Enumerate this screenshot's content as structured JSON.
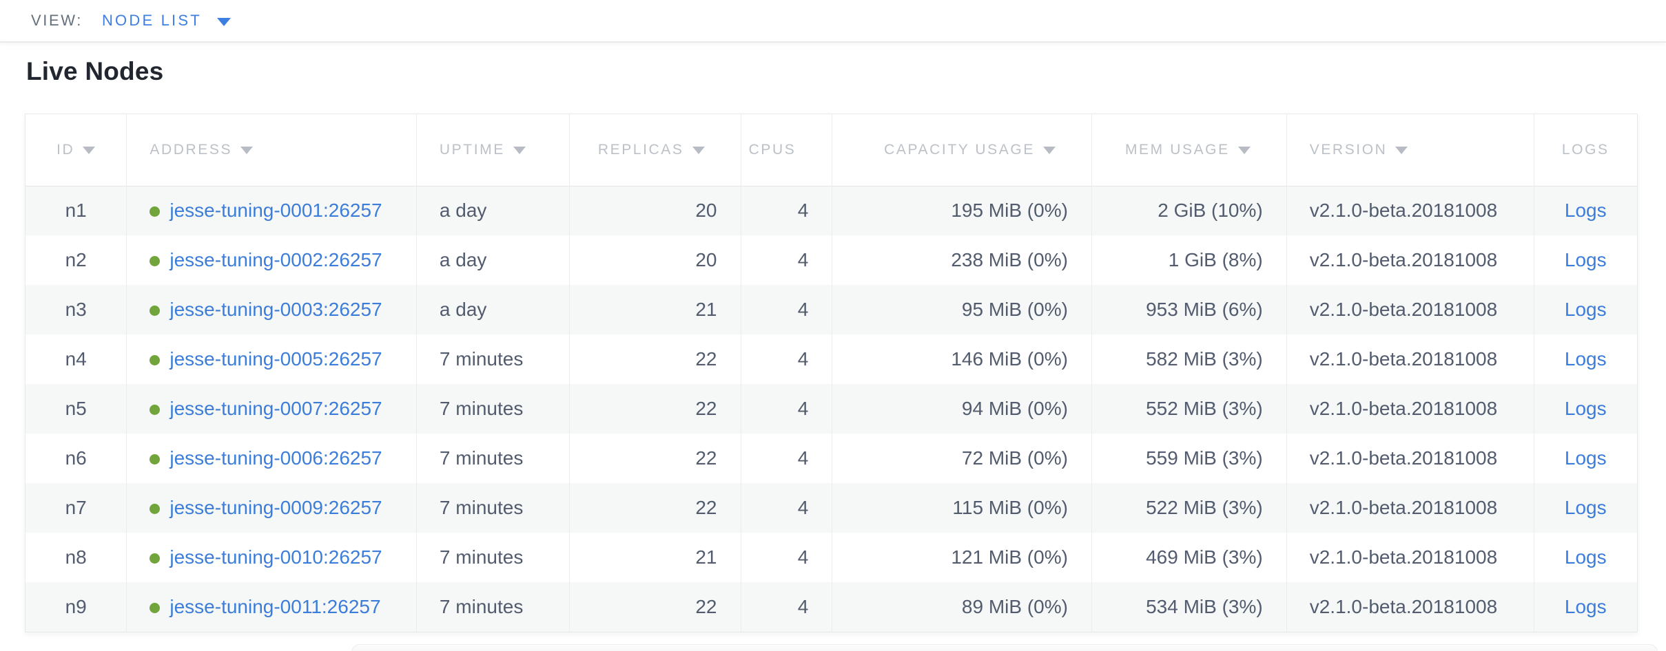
{
  "view_bar": {
    "label": "VIEW:",
    "selected": "NODE LIST"
  },
  "page": {
    "title": "Live Nodes"
  },
  "table": {
    "columns": [
      {
        "key": "id",
        "label": "ID",
        "sortable": true,
        "align": "center"
      },
      {
        "key": "address",
        "label": "ADDRESS",
        "sortable": true,
        "align": "left"
      },
      {
        "key": "uptime",
        "label": "UPTIME",
        "sortable": true,
        "align": "left"
      },
      {
        "key": "replicas",
        "label": "REPLICAS",
        "sortable": true,
        "align": "right"
      },
      {
        "key": "cpus",
        "label": "CPUS",
        "sortable": false,
        "align": "right"
      },
      {
        "key": "capacity",
        "label": "CAPACITY USAGE",
        "sortable": true,
        "align": "right"
      },
      {
        "key": "mem",
        "label": "MEM USAGE",
        "sortable": true,
        "align": "right"
      },
      {
        "key": "version",
        "label": "VERSION",
        "sortable": true,
        "align": "left"
      },
      {
        "key": "logs",
        "label": "LOGS",
        "sortable": false,
        "align": "center"
      }
    ],
    "rows": [
      {
        "id": "n1",
        "address": "jesse-tuning-0001:26257",
        "status": "healthy",
        "uptime": "a day",
        "replicas": "20",
        "cpus": "4",
        "capacity": "195 MiB (0%)",
        "mem": "2 GiB (10%)",
        "version": "v2.1.0-beta.20181008",
        "logs": "Logs"
      },
      {
        "id": "n2",
        "address": "jesse-tuning-0002:26257",
        "status": "healthy",
        "uptime": "a day",
        "replicas": "20",
        "cpus": "4",
        "capacity": "238 MiB (0%)",
        "mem": "1 GiB (8%)",
        "version": "v2.1.0-beta.20181008",
        "logs": "Logs"
      },
      {
        "id": "n3",
        "address": "jesse-tuning-0003:26257",
        "status": "healthy",
        "uptime": "a day",
        "replicas": "21",
        "cpus": "4",
        "capacity": "95 MiB (0%)",
        "mem": "953 MiB (6%)",
        "version": "v2.1.0-beta.20181008",
        "logs": "Logs"
      },
      {
        "id": "n4",
        "address": "jesse-tuning-0005:26257",
        "status": "healthy",
        "uptime": "7 minutes",
        "replicas": "22",
        "cpus": "4",
        "capacity": "146 MiB (0%)",
        "mem": "582 MiB (3%)",
        "version": "v2.1.0-beta.20181008",
        "logs": "Logs"
      },
      {
        "id": "n5",
        "address": "jesse-tuning-0007:26257",
        "status": "healthy",
        "uptime": "7 minutes",
        "replicas": "22",
        "cpus": "4",
        "capacity": "94 MiB (0%)",
        "mem": "552 MiB (3%)",
        "version": "v2.1.0-beta.20181008",
        "logs": "Logs"
      },
      {
        "id": "n6",
        "address": "jesse-tuning-0006:26257",
        "status": "healthy",
        "uptime": "7 minutes",
        "replicas": "22",
        "cpus": "4",
        "capacity": "72 MiB (0%)",
        "mem": "559 MiB (3%)",
        "version": "v2.1.0-beta.20181008",
        "logs": "Logs"
      },
      {
        "id": "n7",
        "address": "jesse-tuning-0009:26257",
        "status": "healthy",
        "uptime": "7 minutes",
        "replicas": "22",
        "cpus": "4",
        "capacity": "115 MiB (0%)",
        "mem": "522 MiB (3%)",
        "version": "v2.1.0-beta.20181008",
        "logs": "Logs"
      },
      {
        "id": "n8",
        "address": "jesse-tuning-0010:26257",
        "status": "healthy",
        "uptime": "7 minutes",
        "replicas": "21",
        "cpus": "4",
        "capacity": "121 MiB (0%)",
        "mem": "469 MiB (3%)",
        "version": "v2.1.0-beta.20181008",
        "logs": "Logs"
      },
      {
        "id": "n9",
        "address": "jesse-tuning-0011:26257",
        "status": "healthy",
        "uptime": "7 minutes",
        "replicas": "22",
        "cpus": "4",
        "capacity": "89 MiB (0%)",
        "mem": "534 MiB (3%)",
        "version": "v2.1.0-beta.20181008",
        "logs": "Logs"
      }
    ]
  },
  "colors": {
    "link_blue": "#3b7dd9",
    "accent_blue": "#3d7ee1",
    "healthy_dot_green": "#72a43c",
    "header_text_gray": "#bcc1c8",
    "cell_text": "#525c6e",
    "row_stripe": "#f6f7f7"
  },
  "icons": {
    "sort_arrow": "triangle-down",
    "view_dropdown": "triangle-down",
    "node_status": "circle"
  }
}
